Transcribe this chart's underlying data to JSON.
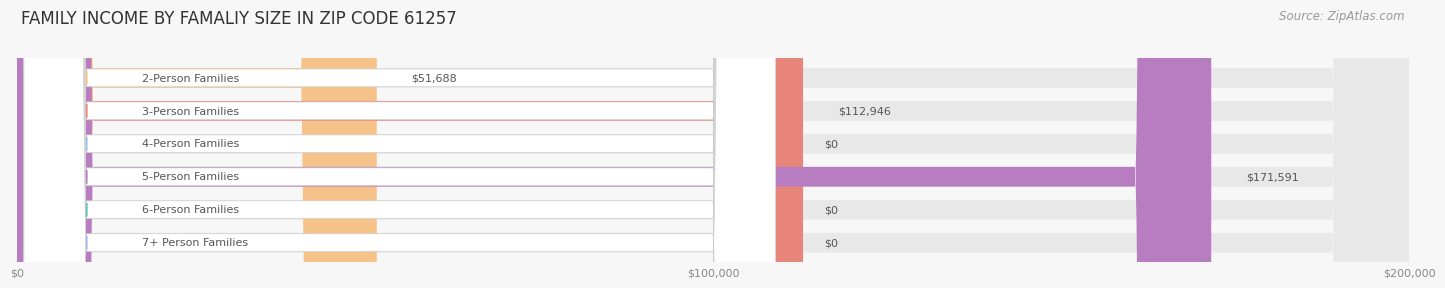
{
  "title": "FAMILY INCOME BY FAMALIY SIZE IN ZIP CODE 61257",
  "source": "Source: ZipAtlas.com",
  "categories": [
    "2-Person Families",
    "3-Person Families",
    "4-Person Families",
    "5-Person Families",
    "6-Person Families",
    "7+ Person Families"
  ],
  "values": [
    51688,
    112946,
    0,
    171591,
    0,
    0
  ],
  "bar_colors": [
    "#f5c28a",
    "#e8857a",
    "#9ac4e8",
    "#b87dc0",
    "#5cc4b0",
    "#a8b8e8"
  ],
  "background_color": "#f7f7f7",
  "bar_bg_color": "#e8e8e8",
  "xlim": [
    0,
    200000
  ],
  "title_fontsize": 12,
  "label_fontsize": 8,
  "value_fontsize": 8,
  "source_fontsize": 8.5,
  "tick_labels": [
    "$0",
    "$100,000",
    "$200,000"
  ],
  "tick_values": [
    0,
    100000,
    200000
  ]
}
